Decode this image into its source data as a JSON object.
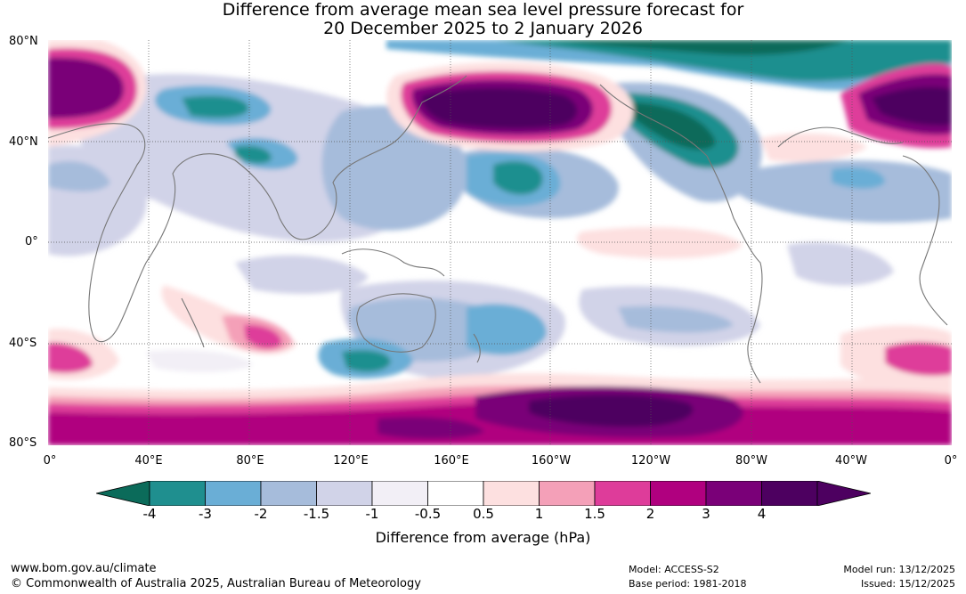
{
  "title_line1": "Difference from average mean sea level pressure forecast for",
  "title_line2": "20 December 2025 to 2 January 2026",
  "lat_labels": [
    "80°N",
    "40°N",
    "0°",
    "40°S",
    "80°S"
  ],
  "lon_labels": [
    "0°",
    "40°E",
    "80°E",
    "120°E",
    "160°E",
    "160°W",
    "120°W",
    "80°W",
    "40°W",
    "0°"
  ],
  "colorbar": {
    "ticks": [
      "-4",
      "-3",
      "-2",
      "-1.5",
      "-1",
      "-0.5",
      "0.5",
      "1",
      "1.5",
      "2",
      "3",
      "4"
    ],
    "colors": [
      "#1f8f8f",
      "#6aaed6",
      "#a6bcdb",
      "#d1d3e8",
      "#f2eff6",
      "#ffffff",
      "#fde0e0",
      "#f4a0b8",
      "#de3c9a",
      "#b0007f",
      "#7a0078",
      "#4d0060"
    ],
    "low_extend_color": "#0b6b5a",
    "high_extend_color": "#4d0060",
    "label": "Difference from average (hPa)"
  },
  "footer": {
    "website": "www.bom.gov.au/climate",
    "copyright": "© Commonwealth of Australia 2025, Australian Bureau of Meteorology",
    "model": "Model: ACCESS-S2",
    "base_period": "Base period: 1981-2018",
    "model_run": "Model run: 13/12/2025",
    "issued": "Issued: 15/12/2025"
  }
}
